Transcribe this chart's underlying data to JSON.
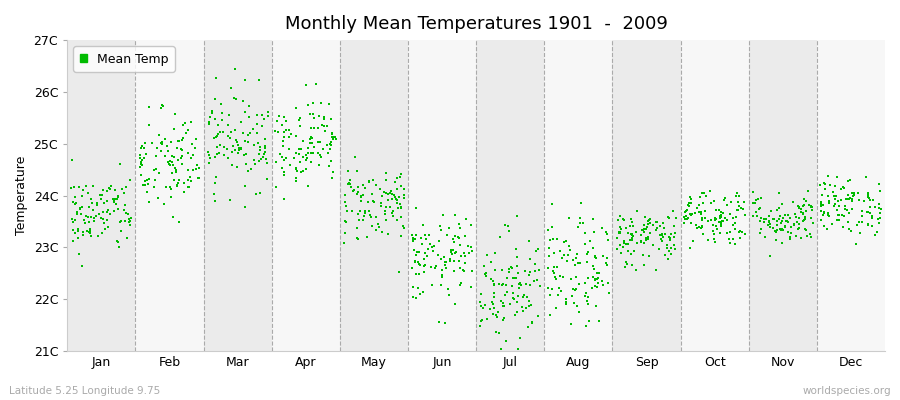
{
  "title": "Monthly Mean Temperatures 1901  -  2009",
  "ylabel": "Temperature",
  "xlabel": "",
  "ylim": [
    21.0,
    27.0
  ],
  "ytick_labels": [
    "21C",
    "22C",
    "23C",
    "24C",
    "25C",
    "26C",
    "27C"
  ],
  "ytick_values": [
    21.0,
    22.0,
    23.0,
    24.0,
    25.0,
    26.0,
    27.0
  ],
  "months": [
    "Jan",
    "Feb",
    "Mar",
    "Apr",
    "May",
    "Jun",
    "Jul",
    "Aug",
    "Sep",
    "Oct",
    "Nov",
    "Dec"
  ],
  "n_years": 109,
  "dot_color": "#00BB00",
  "marker": "s",
  "marker_size": 3.5,
  "bg_band_colors": [
    "#ebebeb",
    "#f7f7f7"
  ],
  "legend_label": "Mean Temp",
  "bottom_left_text": "Latitude 5.25 Longitude 9.75",
  "bottom_right_text": "worldspecies.org",
  "title_fontsize": 13,
  "axis_fontsize": 9,
  "tick_fontsize": 9,
  "monthly_mean_temps": [
    23.65,
    24.6,
    25.1,
    25.05,
    23.85,
    22.75,
    22.25,
    22.5,
    23.2,
    23.6,
    23.55,
    23.8
  ],
  "monthly_std_temps": [
    0.38,
    0.52,
    0.48,
    0.42,
    0.38,
    0.42,
    0.55,
    0.52,
    0.28,
    0.28,
    0.25,
    0.28
  ],
  "random_seed": 42
}
